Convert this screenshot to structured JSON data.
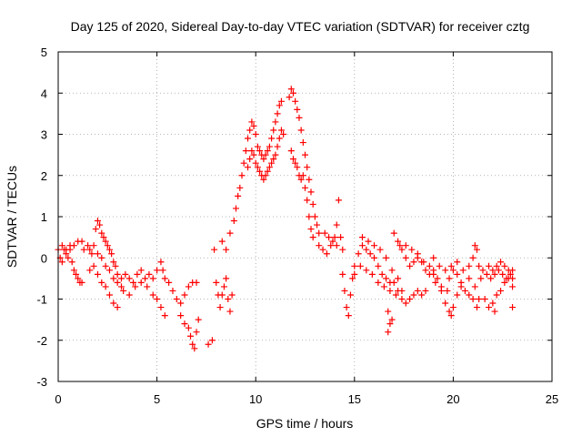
{
  "chart_data": {
    "type": "scatter",
    "title": "Day 125 of 2020, Sidereal Day-to-day VTEC variation (SDTVAR) for receiver cztg",
    "xlabel": "GPS time / hours",
    "ylabel": "SDTVAR / TECUs",
    "xlim": [
      0,
      25
    ],
    "ylim": [
      -3,
      5
    ],
    "xticks": [
      0,
      5,
      10,
      15,
      20,
      25
    ],
    "yticks": [
      -3,
      -2,
      -1,
      0,
      1,
      2,
      3,
      4,
      5
    ],
    "grid": true,
    "marker": "+",
    "color": "#ff0000",
    "series": [
      {
        "name": "SDTVAR",
        "points": [
          [
            0.0,
            0.2
          ],
          [
            0.1,
            0.0
          ],
          [
            0.2,
            -0.1
          ],
          [
            0.3,
            0.2
          ],
          [
            0.4,
            0.1
          ],
          [
            0.5,
            0.0
          ],
          [
            0.6,
            0.2
          ],
          [
            0.7,
            -0.1
          ],
          [
            0.8,
            -0.3
          ],
          [
            0.9,
            -0.4
          ],
          [
            1.0,
            -0.5
          ],
          [
            1.1,
            -0.6
          ],
          [
            1.2,
            -0.6
          ],
          [
            0.2,
            0.3
          ],
          [
            0.4,
            0.2
          ],
          [
            0.6,
            0.3
          ],
          [
            0.8,
            0.3
          ],
          [
            1.0,
            0.4
          ],
          [
            1.2,
            0.4
          ],
          [
            1.3,
            0.2
          ],
          [
            1.5,
            0.3
          ],
          [
            1.6,
            0.2
          ],
          [
            1.7,
            0.1
          ],
          [
            1.8,
            0.3
          ],
          [
            1.9,
            0.7
          ],
          [
            2.0,
            0.9
          ],
          [
            2.1,
            0.8
          ],
          [
            2.2,
            0.6
          ],
          [
            2.3,
            0.5
          ],
          [
            2.4,
            0.4
          ],
          [
            2.5,
            0.3
          ],
          [
            2.6,
            0.2
          ],
          [
            2.7,
            0.1
          ],
          [
            2.8,
            -0.1
          ],
          [
            2.9,
            -0.2
          ],
          [
            3.0,
            -0.4
          ],
          [
            1.6,
            -0.3
          ],
          [
            1.8,
            -0.2
          ],
          [
            2.0,
            -0.4
          ],
          [
            2.2,
            -0.6
          ],
          [
            2.4,
            -0.7
          ],
          [
            2.6,
            -0.9
          ],
          [
            2.8,
            -1.1
          ],
          [
            3.0,
            -1.2
          ],
          [
            2.0,
            0.1
          ],
          [
            2.2,
            0.0
          ],
          [
            2.4,
            -0.2
          ],
          [
            2.6,
            -0.3
          ],
          [
            2.8,
            -0.5
          ],
          [
            3.0,
            -0.6
          ],
          [
            3.2,
            -0.7
          ],
          [
            3.2,
            -0.5
          ],
          [
            3.4,
            -0.4
          ],
          [
            3.6,
            -0.5
          ],
          [
            3.8,
            -0.6
          ],
          [
            4.0,
            -0.4
          ],
          [
            4.2,
            -0.3
          ],
          [
            4.4,
            -0.5
          ],
          [
            4.6,
            -0.4
          ],
          [
            4.8,
            -0.5
          ],
          [
            5.0,
            -0.3
          ],
          [
            5.2,
            -0.1
          ],
          [
            5.3,
            -0.3
          ],
          [
            3.3,
            -0.8
          ],
          [
            3.6,
            -0.9
          ],
          [
            3.9,
            -0.7
          ],
          [
            4.2,
            -0.6
          ],
          [
            4.5,
            -0.7
          ],
          [
            4.8,
            -0.9
          ],
          [
            5.0,
            -1.0
          ],
          [
            5.2,
            -1.2
          ],
          [
            5.4,
            -1.4
          ],
          [
            5.4,
            -0.5
          ],
          [
            5.6,
            -0.6
          ],
          [
            5.8,
            -0.8
          ],
          [
            6.0,
            -1.0
          ],
          [
            6.2,
            -1.1
          ],
          [
            6.4,
            -0.9
          ],
          [
            6.6,
            -0.7
          ],
          [
            6.8,
            -0.6
          ],
          [
            7.0,
            -0.6
          ],
          [
            6.2,
            -1.4
          ],
          [
            6.4,
            -1.6
          ],
          [
            6.6,
            -1.7
          ],
          [
            6.7,
            -1.9
          ],
          [
            6.8,
            -2.1
          ],
          [
            6.9,
            -2.2
          ],
          [
            7.0,
            -1.8
          ],
          [
            7.1,
            -1.5
          ],
          [
            7.6,
            -2.1
          ],
          [
            7.8,
            -2.0
          ],
          [
            7.9,
            0.2
          ],
          [
            8.0,
            -0.6
          ],
          [
            8.1,
            -0.9
          ],
          [
            8.2,
            -1.2
          ],
          [
            8.3,
            -0.9
          ],
          [
            8.4,
            -0.7
          ],
          [
            8.5,
            -0.5
          ],
          [
            8.6,
            -1.0
          ],
          [
            8.7,
            -1.3
          ],
          [
            8.8,
            -0.9
          ],
          [
            8.3,
            0.4
          ],
          [
            8.5,
            0.2
          ],
          [
            8.7,
            0.6
          ],
          [
            8.9,
            0.9
          ],
          [
            9.0,
            1.2
          ],
          [
            9.1,
            1.5
          ],
          [
            9.2,
            1.7
          ],
          [
            9.3,
            2.0
          ],
          [
            9.4,
            2.3
          ],
          [
            9.5,
            2.6
          ],
          [
            9.6,
            2.9
          ],
          [
            9.7,
            3.1
          ],
          [
            9.8,
            3.3
          ],
          [
            9.9,
            3.2
          ],
          [
            10.0,
            3.0
          ],
          [
            9.6,
            2.2
          ],
          [
            9.7,
            2.4
          ],
          [
            9.8,
            2.6
          ],
          [
            9.9,
            2.5
          ],
          [
            10.0,
            2.3
          ],
          [
            10.1,
            2.2
          ],
          [
            10.2,
            2.1
          ],
          [
            10.3,
            2.0
          ],
          [
            10.4,
            1.9
          ],
          [
            10.5,
            2.0
          ],
          [
            10.6,
            2.1
          ],
          [
            10.7,
            2.2
          ],
          [
            10.8,
            2.3
          ],
          [
            10.9,
            2.4
          ],
          [
            10.1,
            2.7
          ],
          [
            10.2,
            2.6
          ],
          [
            10.3,
            2.5
          ],
          [
            10.4,
            2.4
          ],
          [
            10.5,
            2.5
          ],
          [
            10.6,
            2.6
          ],
          [
            10.7,
            2.7
          ],
          [
            10.8,
            2.9
          ],
          [
            10.9,
            3.1
          ],
          [
            11.0,
            3.3
          ],
          [
            11.1,
            3.5
          ],
          [
            11.2,
            3.7
          ],
          [
            11.3,
            3.8
          ],
          [
            11.0,
            2.5
          ],
          [
            11.1,
            2.7
          ],
          [
            11.2,
            2.9
          ],
          [
            11.3,
            3.1
          ],
          [
            11.4,
            3.0
          ],
          [
            11.7,
            3.9
          ],
          [
            11.8,
            4.1
          ],
          [
            11.9,
            4.0
          ],
          [
            12.0,
            3.8
          ],
          [
            12.1,
            3.6
          ],
          [
            12.2,
            3.4
          ],
          [
            12.3,
            3.1
          ],
          [
            12.4,
            2.8
          ],
          [
            12.5,
            2.5
          ],
          [
            12.6,
            2.2
          ],
          [
            12.7,
            1.9
          ],
          [
            12.8,
            1.6
          ],
          [
            12.9,
            1.3
          ],
          [
            13.0,
            1.0
          ],
          [
            13.1,
            0.8
          ],
          [
            13.2,
            0.6
          ],
          [
            11.8,
            2.6
          ],
          [
            11.9,
            2.4
          ],
          [
            12.0,
            2.3
          ],
          [
            12.1,
            2.2
          ],
          [
            12.2,
            2.0
          ],
          [
            12.3,
            1.9
          ],
          [
            12.4,
            2.0
          ],
          [
            12.5,
            1.7
          ],
          [
            12.6,
            1.4
          ],
          [
            12.7,
            1.0
          ],
          [
            12.8,
            0.7
          ],
          [
            12.9,
            0.5
          ],
          [
            13.2,
            0.3
          ],
          [
            13.4,
            0.2
          ],
          [
            13.6,
            0.1
          ],
          [
            13.8,
            0.3
          ],
          [
            14.0,
            0.5
          ],
          [
            14.1,
            0.8
          ],
          [
            14.2,
            1.4
          ],
          [
            14.3,
            0.5
          ],
          [
            14.4,
            0.2
          ],
          [
            13.5,
            0.6
          ],
          [
            13.7,
            0.5
          ],
          [
            13.9,
            0.4
          ],
          [
            14.1,
            0.3
          ],
          [
            14.4,
            -0.4
          ],
          [
            14.5,
            -0.8
          ],
          [
            14.6,
            -1.2
          ],
          [
            14.7,
            -1.4
          ],
          [
            14.8,
            -0.9
          ],
          [
            14.9,
            -0.5
          ],
          [
            15.0,
            -0.2
          ],
          [
            15.2,
            0.1
          ],
          [
            15.4,
            0.3
          ],
          [
            15.6,
            0.2
          ],
          [
            15.8,
            0.1
          ],
          [
            16.0,
            0.0
          ],
          [
            16.2,
            -0.2
          ],
          [
            16.4,
            -0.4
          ],
          [
            16.6,
            -0.5
          ],
          [
            16.8,
            -0.6
          ],
          [
            17.0,
            -0.6
          ],
          [
            15.0,
            -0.4
          ],
          [
            15.3,
            -0.2
          ],
          [
            15.6,
            -0.3
          ],
          [
            15.9,
            -0.4
          ],
          [
            16.2,
            -0.6
          ],
          [
            16.5,
            -0.7
          ],
          [
            16.8,
            -0.8
          ],
          [
            17.1,
            -0.9
          ],
          [
            17.4,
            -0.8
          ],
          [
            15.4,
            0.5
          ],
          [
            15.7,
            0.4
          ],
          [
            16.0,
            0.3
          ],
          [
            16.3,
            0.2
          ],
          [
            16.6,
            0.0
          ],
          [
            16.9,
            -0.3
          ],
          [
            17.2,
            -0.5
          ],
          [
            16.7,
            -1.3
          ],
          [
            16.8,
            -1.6
          ],
          [
            16.7,
            -1.8
          ],
          [
            16.9,
            -1.5
          ],
          [
            17.2,
            -0.8
          ],
          [
            17.4,
            -1.0
          ],
          [
            17.6,
            -1.1
          ],
          [
            17.8,
            -1.0
          ],
          [
            18.0,
            -0.9
          ],
          [
            18.2,
            -0.8
          ],
          [
            18.4,
            -0.9
          ],
          [
            18.6,
            -0.8
          ],
          [
            17.0,
            0.6
          ],
          [
            17.2,
            0.4
          ],
          [
            17.4,
            0.2
          ],
          [
            17.6,
            0.0
          ],
          [
            17.8,
            -0.2
          ],
          [
            18.0,
            -0.1
          ],
          [
            18.2,
            0.0
          ],
          [
            18.4,
            -0.1
          ],
          [
            18.6,
            -0.3
          ],
          [
            18.8,
            -0.2
          ],
          [
            19.0,
            -0.4
          ],
          [
            17.3,
            0.3
          ],
          [
            17.6,
            0.3
          ],
          [
            17.9,
            0.2
          ],
          [
            18.2,
            0.1
          ],
          [
            18.5,
            -0.1
          ],
          [
            18.8,
            -0.4
          ],
          [
            19.1,
            -0.6
          ],
          [
            19.4,
            -0.7
          ],
          [
            19.7,
            -0.8
          ],
          [
            19.0,
            -0.3
          ],
          [
            19.2,
            -0.5
          ],
          [
            19.4,
            -0.8
          ],
          [
            19.6,
            -1.1
          ],
          [
            19.8,
            -1.3
          ],
          [
            19.9,
            -1.4
          ],
          [
            20.0,
            -1.2
          ],
          [
            20.2,
            -0.9
          ],
          [
            20.4,
            -0.7
          ],
          [
            19.8,
            -0.5
          ],
          [
            20.0,
            -0.3
          ],
          [
            20.2,
            -0.4
          ],
          [
            20.4,
            -0.6
          ],
          [
            20.6,
            -0.8
          ],
          [
            20.8,
            -0.9
          ],
          [
            21.0,
            -1.0
          ],
          [
            19.0,
            0.0
          ],
          [
            19.3,
            -0.2
          ],
          [
            19.6,
            -0.3
          ],
          [
            19.9,
            -0.2
          ],
          [
            20.2,
            -0.1
          ],
          [
            20.5,
            -0.3
          ],
          [
            20.8,
            -0.5
          ],
          [
            21.1,
            -0.7
          ],
          [
            21.3,
            -1.0
          ],
          [
            20.8,
            -0.2
          ],
          [
            21.0,
            0.0
          ],
          [
            21.1,
            0.3
          ],
          [
            21.2,
            0.2
          ],
          [
            21.3,
            -0.2
          ],
          [
            21.4,
            -0.5
          ],
          [
            21.6,
            -1.0
          ],
          [
            21.8,
            -1.2
          ],
          [
            22.0,
            -1.1
          ],
          [
            22.2,
            -0.9
          ],
          [
            22.4,
            -0.8
          ],
          [
            22.6,
            -0.6
          ],
          [
            22.8,
            -0.5
          ],
          [
            23.0,
            -0.7
          ],
          [
            21.5,
            -0.3
          ],
          [
            21.7,
            -0.4
          ],
          [
            21.9,
            -0.5
          ],
          [
            22.1,
            -0.4
          ],
          [
            22.3,
            -0.3
          ],
          [
            22.5,
            -0.4
          ],
          [
            22.7,
            -0.5
          ],
          [
            22.9,
            -0.4
          ],
          [
            23.0,
            -0.3
          ],
          [
            21.8,
            -0.2
          ],
          [
            22.0,
            -0.3
          ],
          [
            22.2,
            -0.2
          ],
          [
            22.4,
            -0.1
          ],
          [
            22.6,
            -0.2
          ],
          [
            22.8,
            -0.3
          ],
          [
            23.0,
            -0.5
          ],
          [
            23.0,
            -1.2
          ],
          [
            21.2,
            -1.2
          ],
          [
            22.1,
            -1.3
          ]
        ]
      }
    ]
  }
}
